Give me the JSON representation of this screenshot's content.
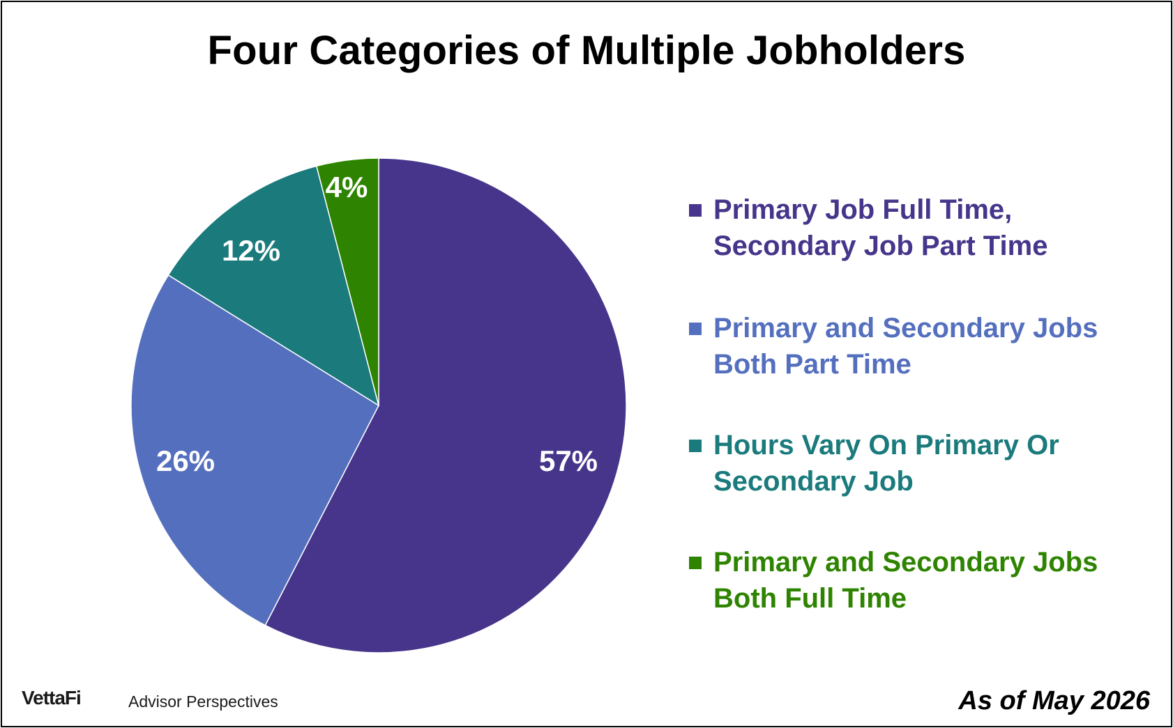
{
  "chart_data": {
    "type": "pie",
    "title": "Four Categories of Multiple Jobholders",
    "slices": [
      {
        "label": "Primary Job Full Time,\nSecondary Job Part Time",
        "value": 57,
        "display": "57%",
        "color": "#46358A"
      },
      {
        "label": "Primary and Secondary Jobs\nBoth Part Time",
        "value": 26,
        "display": "26%",
        "color": "#546FBE"
      },
      {
        "label": "Hours Vary On Primary Or\nSecondary Job",
        "value": 12,
        "display": "12%",
        "color": "#1A7A7C"
      },
      {
        "label": "Primary and Secondary Jobs\nBoth Full Time",
        "value": 4,
        "display": "4%",
        "color": "#2E8400"
      }
    ],
    "start": "12 o'clock",
    "direction": "clockwise",
    "legend_position": "right"
  },
  "footer": {
    "logo": "VettaFi",
    "brand": "Advisor Perspectives",
    "date": "As of May 2026"
  }
}
